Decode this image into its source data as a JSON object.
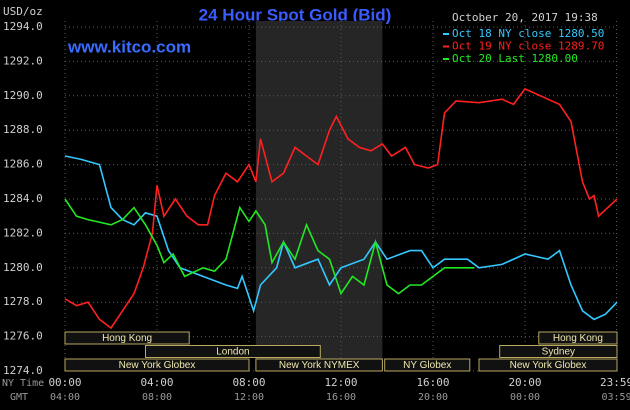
{
  "chart_data": {
    "type": "line",
    "title": "24 Hour Spot Gold (Bid)",
    "timestamp": "October 20, 2017 19:38",
    "y_label": "USD/oz",
    "watermark": "www.kitco.com",
    "x_row_label": "NY Time",
    "x2_row_label": "GMT",
    "xlim": [
      0,
      24
    ],
    "xticks": [
      {
        "value": 0,
        "label": "00:00"
      },
      {
        "value": 4,
        "label": "04:00"
      },
      {
        "value": 8,
        "label": "08:00"
      },
      {
        "value": 12,
        "label": "12:00"
      },
      {
        "value": 16,
        "label": "16:00"
      },
      {
        "value": 20,
        "label": "20:00"
      },
      {
        "value": 23.98,
        "label": "23:59"
      }
    ],
    "gmt_labels": [
      "04:00",
      "08:00",
      "12:00",
      "16:00",
      "20:00",
      "00:00",
      "03:59"
    ],
    "ylim": [
      1274,
      1294
    ],
    "yticks": [
      {
        "value": 1274,
        "label": "1274.0"
      },
      {
        "value": 1276,
        "label": "1276.0"
      },
      {
        "value": 1278,
        "label": "1278.0"
      },
      {
        "value": 1280,
        "label": "1280.0"
      },
      {
        "value": 1282,
        "label": "1282.0"
      },
      {
        "value": 1284,
        "label": "1284.0"
      },
      {
        "value": 1286,
        "label": "1286.0"
      },
      {
        "value": 1288,
        "label": "1288.0"
      },
      {
        "value": 1290,
        "label": "1290.0"
      },
      {
        "value": 1292,
        "label": "1292.0"
      },
      {
        "value": 1294,
        "label": "1294.0"
      }
    ],
    "grid": true,
    "sessions": [
      {
        "name": "Hong Kong",
        "start": 0,
        "end": 5.4,
        "row": 0
      },
      {
        "name": "Hong Kong",
        "start": 20.6,
        "end": 24,
        "row": 0
      },
      {
        "name": "London",
        "start": 3.5,
        "end": 11.1,
        "row": 1
      },
      {
        "name": "Sydney",
        "start": 18.9,
        "end": 24,
        "row": 1
      },
      {
        "name": "New York Globex",
        "start": 0,
        "end": 8,
        "row": 2
      },
      {
        "name": "New York NYMEX",
        "start": 8.3,
        "end": 13.8,
        "row": 2,
        "shaded": true
      },
      {
        "name": "NY Globex",
        "start": 13.9,
        "end": 17.6,
        "row": 2
      },
      {
        "name": "New York Globex",
        "start": 18,
        "end": 24,
        "row": 2
      }
    ],
    "series": [
      {
        "name": "Oct 18 NY close 1280.50",
        "color": "#33c8ff",
        "x": [
          0,
          0.7,
          1.5,
          2,
          2.5,
          3,
          3.5,
          4,
          4.5,
          5,
          6,
          7,
          7.5,
          7.7,
          8.2,
          8.5,
          9.2,
          9.5,
          10,
          11,
          11.5,
          12,
          13,
          13.5,
          14,
          15,
          15.5,
          16,
          16.5,
          17.5,
          18,
          19,
          20,
          21,
          21.5,
          22,
          22.5,
          23,
          23.5,
          24
        ],
        "values": [
          1286.5,
          1286.3,
          1286,
          1283.5,
          1282.8,
          1282.5,
          1283.2,
          1283,
          1281,
          1280,
          1279.5,
          1279,
          1278.8,
          1279.5,
          1277.5,
          1279,
          1280,
          1281.5,
          1280,
          1280.5,
          1279,
          1280,
          1280.5,
          1281.5,
          1280.5,
          1281,
          1281,
          1280,
          1280.5,
          1280.5,
          1280,
          1280.2,
          1280.8,
          1280.5,
          1281,
          1279,
          1277.5,
          1277,
          1277.3,
          1278
        ]
      },
      {
        "name": "Oct 19 NY close 1289.70",
        "color": "#ff2020",
        "x": [
          0,
          0.5,
          1,
          1.5,
          2,
          2.5,
          3,
          3.4,
          3.8,
          4,
          4.3,
          4.8,
          5.3,
          5.8,
          6.2,
          6.5,
          7,
          7.5,
          8,
          8.3,
          8.5,
          9,
          9.5,
          10,
          10.5,
          11,
          11.5,
          11.8,
          12.3,
          12.8,
          13.3,
          13.8,
          14.2,
          14.8,
          15.2,
          15.8,
          16.2,
          16.5,
          17,
          18,
          19,
          19.5,
          20,
          21,
          21.5,
          22,
          22.5,
          22.8,
          23,
          23.2,
          23.6,
          24
        ],
        "values": [
          1278.2,
          1277.8,
          1278,
          1277,
          1276.5,
          1277.5,
          1278.5,
          1280,
          1282,
          1284.8,
          1283,
          1284,
          1283,
          1282.5,
          1282.5,
          1284.2,
          1285.5,
          1285,
          1286,
          1285,
          1287.5,
          1285,
          1285.5,
          1287,
          1286.5,
          1286,
          1288,
          1288.8,
          1287.5,
          1287,
          1286.8,
          1287.2,
          1286.5,
          1287,
          1286,
          1285.8,
          1286,
          1289,
          1289.7,
          1289.6,
          1289.8,
          1289.5,
          1290.4,
          1289.8,
          1289.5,
          1288.5,
          1285,
          1284,
          1284.2,
          1283,
          1283.5,
          1284
        ]
      },
      {
        "name": "Oct 20 Last 1280.00",
        "color": "#22e822",
        "x": [
          0,
          0.5,
          1,
          2,
          2.5,
          3,
          3.5,
          4,
          4.3,
          4.7,
          5.2,
          6,
          6.5,
          7,
          7.3,
          7.6,
          8,
          8.3,
          8.7,
          9,
          9.5,
          10,
          10.5,
          11,
          11.5,
          12,
          12.5,
          13,
          13.5,
          14,
          14.5,
          15,
          15.5,
          16,
          16.5,
          17.8
        ],
        "values": [
          1284,
          1283,
          1282.8,
          1282.5,
          1282.8,
          1283.5,
          1282.5,
          1281.3,
          1280.3,
          1280.8,
          1279.5,
          1280,
          1279.8,
          1280.5,
          1282,
          1283.5,
          1282.7,
          1283.3,
          1282.5,
          1280.3,
          1281.5,
          1280.5,
          1282.5,
          1281,
          1280.5,
          1278.5,
          1279.5,
          1279,
          1281.5,
          1279,
          1278.5,
          1279,
          1279,
          1279.5,
          1280,
          1280
        ]
      }
    ]
  }
}
